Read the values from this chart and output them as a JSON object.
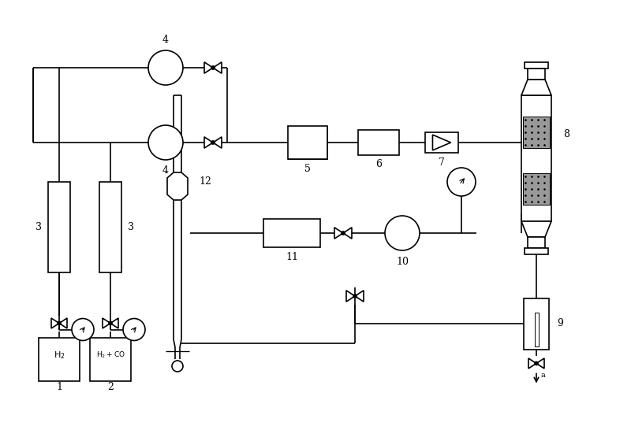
{
  "bg_color": "#ffffff",
  "line_color": "#000000",
  "lw": 1.2,
  "fig_width": 8.0,
  "fig_height": 5.41,
  "dpi": 100
}
